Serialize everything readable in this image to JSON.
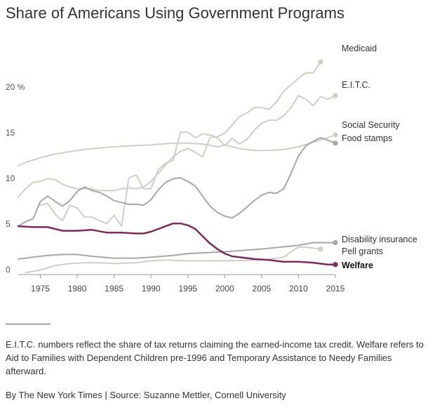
{
  "title": "Share of Americans Using Government Programs",
  "note": "E.I.T.C. numbers reflect the share of tax returns claiming the earned-income tax credit. Welfare refers to Aid to Families with Dependent Children pre-1996 and Temporary Assistance to Needy Families afterward.",
  "credit": "By The New York Times | Source: Suzanne Mettler, Cornell University",
  "chart_data": {
    "type": "line",
    "title": "Share of Americans Using Government Programs",
    "xlabel": "",
    "ylabel": "",
    "xlim": [
      1972,
      2015
    ],
    "ylim": [
      0,
      25
    ],
    "x_ticks": [
      {
        "value": 1975,
        "label": "1975"
      },
      {
        "value": 1980,
        "label": "1980"
      },
      {
        "value": 1985,
        "label": "1985"
      },
      {
        "value": 1990,
        "label": "1990"
      },
      {
        "value": 1995,
        "label": "1995"
      },
      {
        "value": 2000,
        "label": "2000"
      },
      {
        "value": 2005,
        "label": "2005"
      },
      {
        "value": 2010,
        "label": "2010"
      },
      {
        "value": 2015,
        "label": "2015"
      }
    ],
    "y_ticks": [
      {
        "value": 0,
        "label": "0"
      },
      {
        "value": 5,
        "label": "5"
      },
      {
        "value": 10,
        "label": "10"
      },
      {
        "value": 15,
        "label": "15"
      },
      {
        "value": 20,
        "label": "20 %"
      }
    ],
    "grid": false,
    "legend": "direct labels at line ends",
    "series": [
      {
        "name": "Medicaid",
        "color": "#cfcfc8",
        "stroke_width": 2,
        "end_marker": true,
        "x": [
          1972,
          1973,
          1974,
          1975,
          1976,
          1977,
          1978,
          1979,
          1980,
          1981,
          1982,
          1983,
          1984,
          1985,
          1986,
          1987,
          1988,
          1989,
          1990,
          1991,
          1992,
          1993,
          1994,
          1995,
          1996,
          1997,
          1998,
          1999,
          2000,
          2001,
          2002,
          2003,
          2004,
          2005,
          2006,
          2007,
          2008,
          2009,
          2010,
          2011,
          2012,
          2013
        ],
        "values": [
          8.5,
          9.4,
          10.1,
          10.2,
          10.5,
          10.4,
          9.9,
          9.6,
          9.4,
          9.4,
          9.4,
          9.2,
          9.2,
          9.2,
          9.4,
          9.5,
          9.4,
          9.6,
          10.2,
          11.1,
          12.0,
          12.9,
          13.5,
          13.8,
          13.4,
          12.9,
          15.0,
          15.1,
          15.5,
          16.4,
          17.3,
          17.7,
          18.3,
          18.3,
          18.1,
          18.9,
          20.1,
          20.8,
          21.5,
          22.1,
          22.1,
          23.3
        ]
      },
      {
        "name": "E.I.T.C.",
        "color": "#cfcfc8",
        "stroke_width": 2,
        "end_marker": true,
        "x": [
          1975,
          1976,
          1977,
          1978,
          1979,
          1980,
          1981,
          1982,
          1983,
          1984,
          1985,
          1986,
          1987,
          1988,
          1989,
          1990,
          1991,
          1992,
          1993,
          1994,
          1995,
          1996,
          1997,
          1998,
          1999,
          2000,
          2001,
          2002,
          2003,
          2004,
          2005,
          2006,
          2007,
          2008,
          2009,
          2010,
          2011,
          2012,
          2013,
          2014,
          2015
        ],
        "values": [
          7.6,
          7.8,
          6.6,
          5.9,
          7.6,
          7.3,
          6.3,
          6.3,
          5.9,
          5.6,
          6.5,
          5.3,
          10.6,
          10.9,
          9.4,
          9.4,
          11.5,
          12.2,
          12.5,
          15.6,
          15.6,
          15.0,
          15.4,
          15.3,
          15.0,
          14.1,
          14.9,
          14.3,
          14.8,
          15.8,
          16.6,
          16.9,
          16.9,
          17.4,
          18.3,
          19.6,
          19.2,
          18.5,
          19.5,
          19.2,
          19.6
        ]
      },
      {
        "name": "Social Security",
        "color": "#cfcfc8",
        "stroke_width": 2,
        "end_marker": true,
        "x": [
          1972,
          1973,
          1975,
          1977,
          1980,
          1982,
          1985,
          1987,
          1990,
          1993,
          1995,
          1997,
          1999,
          2000,
          2002,
          2004,
          2006,
          2008,
          2010,
          2012,
          2014,
          2015
        ],
        "values": [
          11.9,
          12.3,
          12.8,
          13.2,
          13.6,
          13.8,
          14.0,
          14.1,
          14.2,
          14.4,
          14.4,
          14.3,
          14.0,
          14.2,
          13.8,
          13.6,
          13.6,
          13.7,
          14.0,
          14.5,
          15.0,
          15.3
        ]
      },
      {
        "name": "Food stamps",
        "color": "#a8a8a8",
        "stroke_width": 2,
        "end_marker": true,
        "x": [
          1972,
          1973,
          1974,
          1975,
          1976,
          1977,
          1978,
          1979,
          1980,
          1981,
          1982,
          1983,
          1984,
          1985,
          1986,
          1987,
          1988,
          1989,
          1990,
          1991,
          1992,
          1993,
          1994,
          1995,
          1996,
          1997,
          1998,
          1999,
          2000,
          2001,
          2002,
          2003,
          2004,
          2005,
          2006,
          2007,
          2008,
          2009,
          2010,
          2011,
          2012,
          2013,
          2014,
          2015
        ],
        "values": [
          5.3,
          5.8,
          6.1,
          8.0,
          8.6,
          8.0,
          7.5,
          8.1,
          9.1,
          9.6,
          9.2,
          9.0,
          8.6,
          8.1,
          7.9,
          7.7,
          7.7,
          7.6,
          8.2,
          9.3,
          10.1,
          10.5,
          10.6,
          10.2,
          9.7,
          8.6,
          7.5,
          6.8,
          6.4,
          6.2,
          6.7,
          7.4,
          8.1,
          8.7,
          9.0,
          8.9,
          9.4,
          11.1,
          13.0,
          14.1,
          14.6,
          15.0,
          14.7,
          14.4
        ]
      },
      {
        "name": "Disability insurance",
        "color": "#a8a8a8",
        "stroke_width": 2,
        "end_marker": true,
        "x": [
          1972,
          1974,
          1976,
          1978,
          1980,
          1982,
          1985,
          1988,
          1990,
          1993,
          1995,
          2000,
          2005,
          2010,
          2012,
          2015
        ],
        "values": [
          1.7,
          1.9,
          2.1,
          2.2,
          2.2,
          2.0,
          1.8,
          1.8,
          1.9,
          2.1,
          2.3,
          2.5,
          2.8,
          3.2,
          3.5,
          3.5
        ]
      },
      {
        "name": "Pell grants",
        "color": "#cfcfc8",
        "stroke_width": 2,
        "end_marker": true,
        "x": [
          1973,
          1975,
          1977,
          1979,
          1981,
          1983,
          1985,
          1988,
          1990,
          1992,
          1995,
          2000,
          2005,
          2008,
          2009,
          2010,
          2011,
          2012,
          2013
        ],
        "values": [
          0.2,
          0.5,
          1.0,
          1.2,
          1.3,
          1.3,
          1.2,
          1.3,
          1.5,
          1.6,
          1.5,
          1.5,
          1.6,
          1.9,
          2.5,
          3.0,
          3.0,
          2.9,
          2.8
        ]
      },
      {
        "name": "Welfare",
        "color": "#7b2d5b",
        "stroke_width": 2.5,
        "end_marker": true,
        "bold_label": true,
        "x": [
          1972,
          1974,
          1976,
          1978,
          1980,
          1982,
          1984,
          1986,
          1988,
          1989,
          1990,
          1991,
          1992,
          1993,
          1994,
          1995,
          1996,
          1997,
          1998,
          1999,
          2000,
          2001,
          2002,
          2004,
          2006,
          2008,
          2010,
          2012,
          2014,
          2015
        ],
        "values": [
          5.3,
          5.2,
          5.2,
          4.8,
          4.8,
          4.9,
          4.6,
          4.6,
          4.5,
          4.5,
          4.7,
          5.0,
          5.3,
          5.6,
          5.6,
          5.4,
          5.0,
          4.2,
          3.4,
          2.8,
          2.3,
          2.0,
          1.9,
          1.7,
          1.6,
          1.4,
          1.4,
          1.3,
          1.1,
          1.1
        ]
      }
    ]
  }
}
